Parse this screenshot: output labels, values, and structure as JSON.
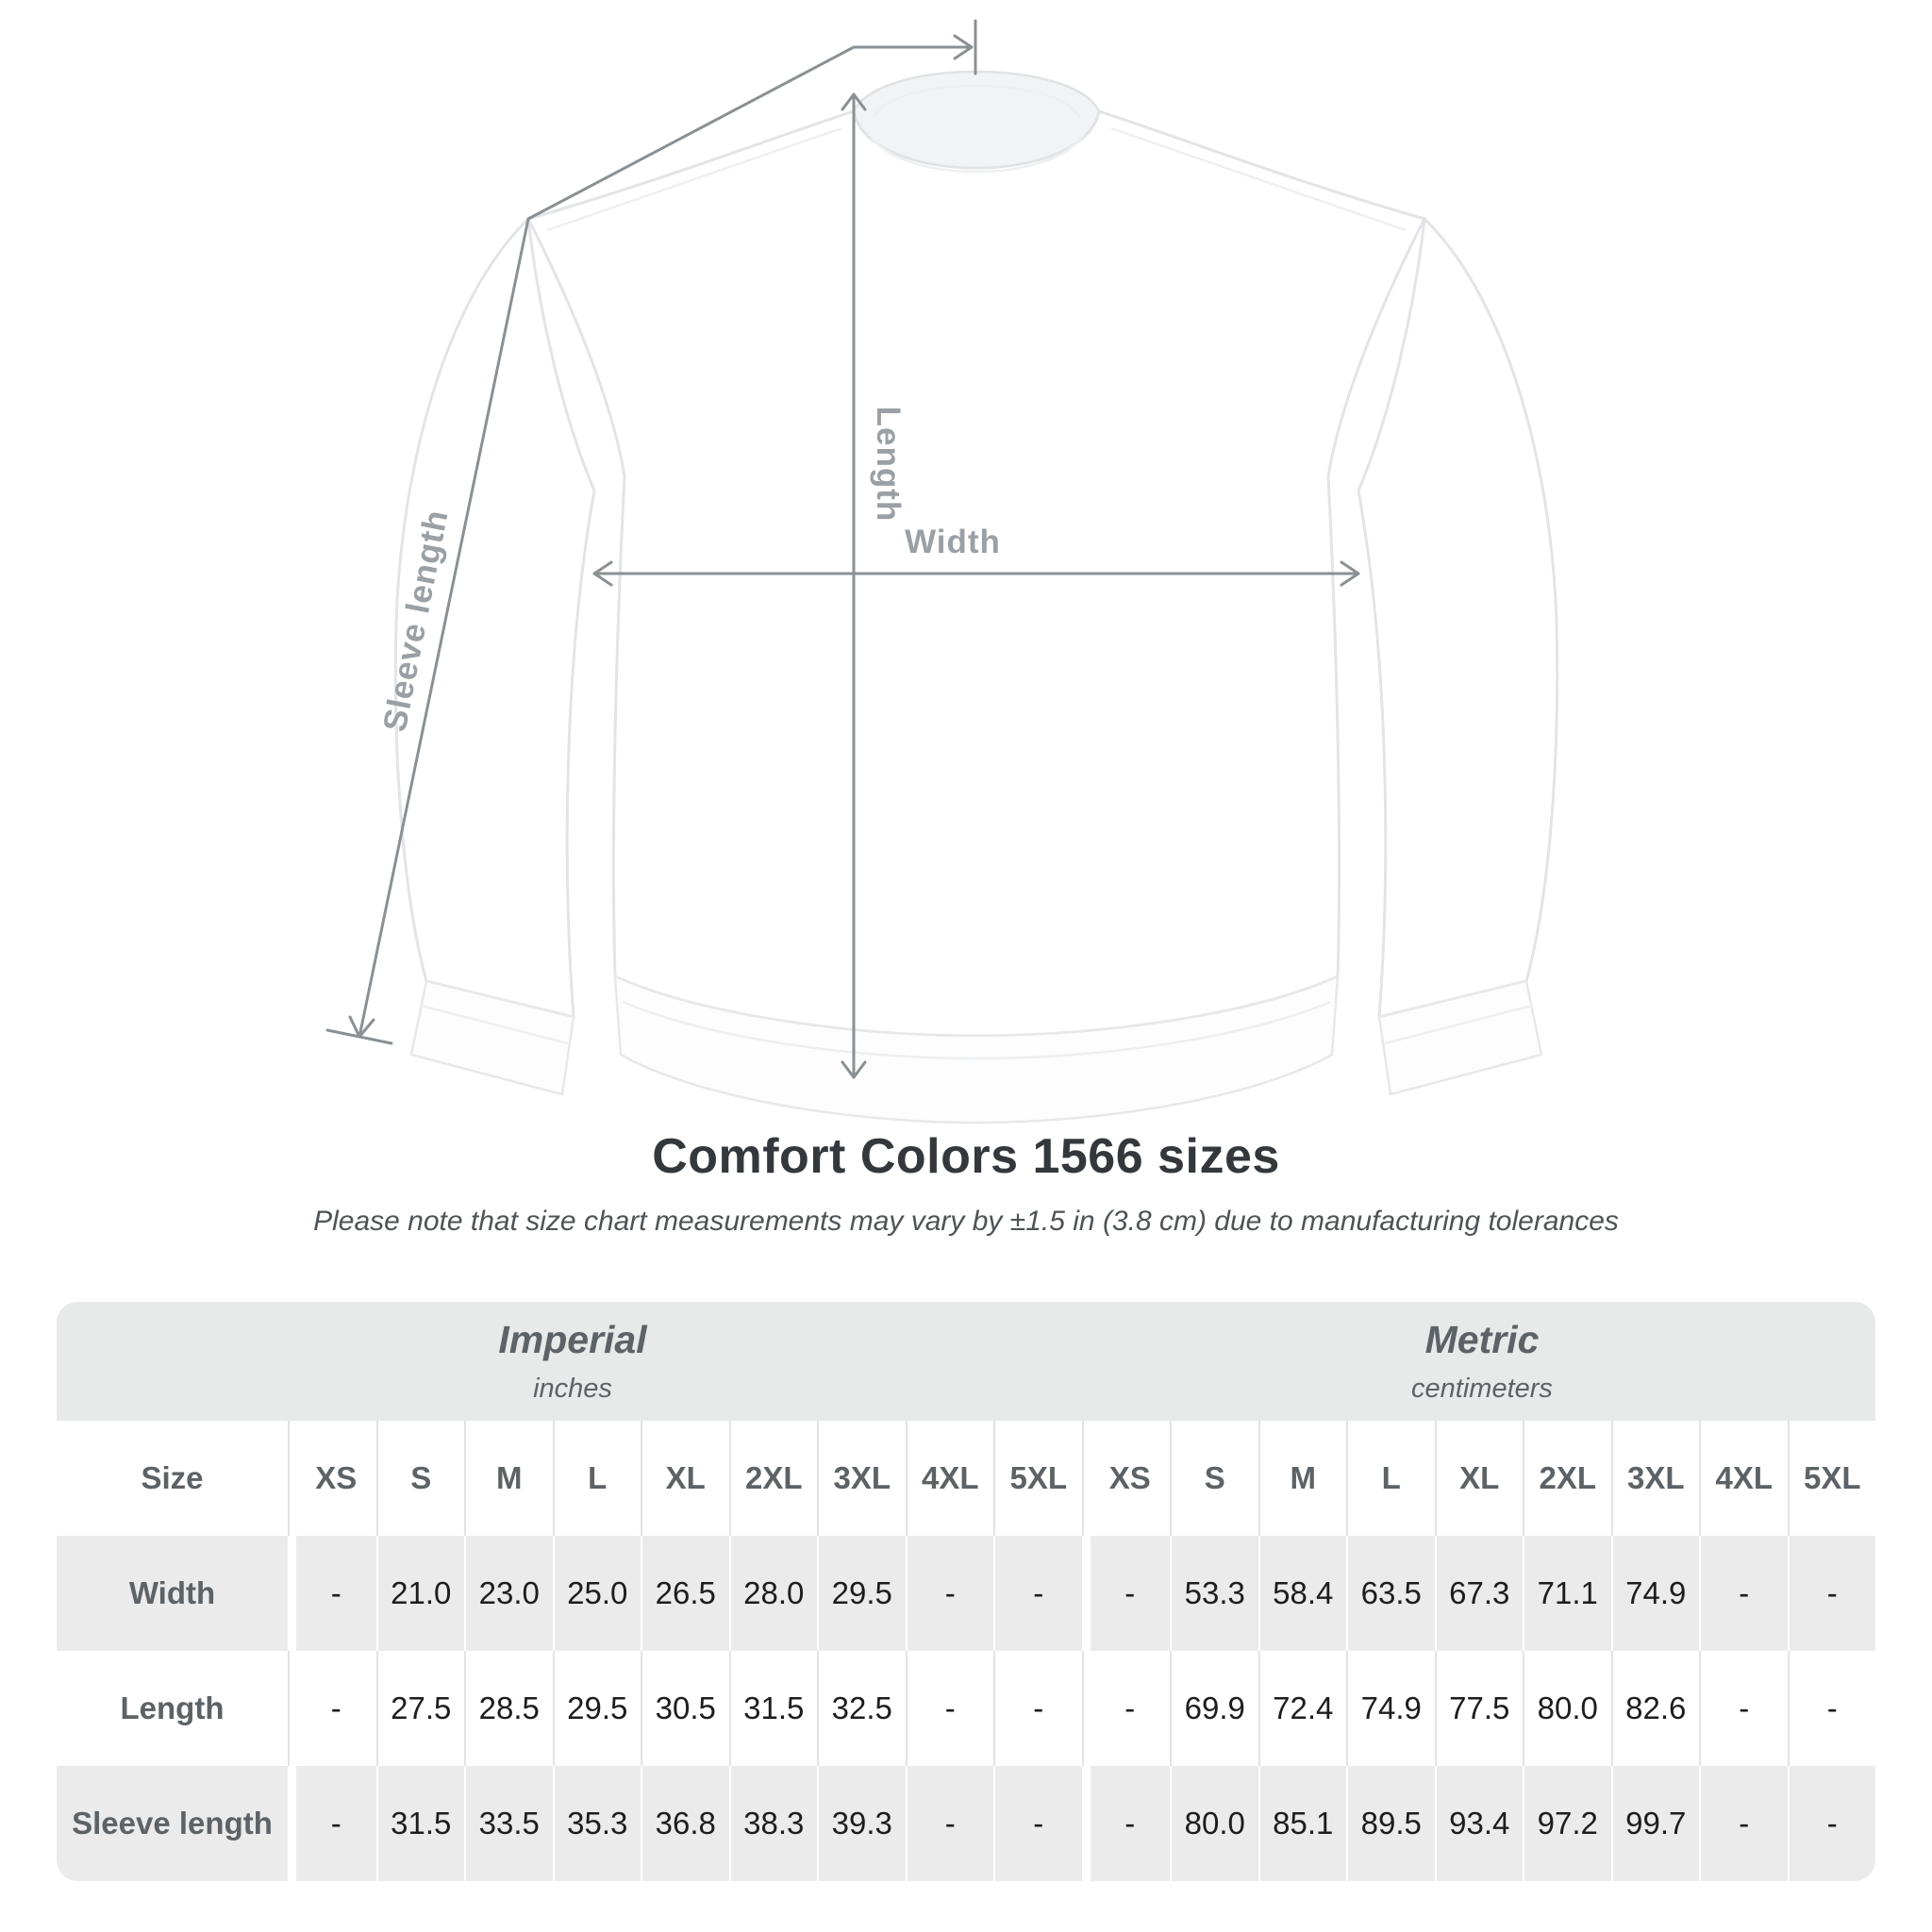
{
  "figure": {
    "length_label": "Length",
    "width_label": "Width",
    "sleeve_label": "Sleeve length",
    "line_color": "#8a9094",
    "label_color": "#9aa0a5"
  },
  "title": "Comfort Colors 1566 sizes",
  "subtitle": "Please note that size chart measurements may vary by ±1.5 in (3.8 cm) due to manufacturing tolerances",
  "table": {
    "groups": [
      {
        "label": "Imperial",
        "sublabel": "inches"
      },
      {
        "label": "Metric",
        "sublabel": "centimeters"
      }
    ],
    "size_header": "Size",
    "sizes": [
      "XS",
      "S",
      "M",
      "L",
      "XL",
      "2XL",
      "3XL",
      "4XL",
      "5XL"
    ],
    "rows": [
      {
        "label": "Width",
        "imperial": [
          "-",
          "21.0",
          "23.0",
          "25.0",
          "26.5",
          "28.0",
          "29.5",
          "-",
          "-"
        ],
        "metric": [
          "-",
          "53.3",
          "58.4",
          "63.5",
          "67.3",
          "71.1",
          "74.9",
          "-",
          "-"
        ]
      },
      {
        "label": "Length",
        "imperial": [
          "-",
          "27.5",
          "28.5",
          "29.5",
          "30.5",
          "31.5",
          "32.5",
          "-",
          "-"
        ],
        "metric": [
          "-",
          "69.9",
          "72.4",
          "74.9",
          "77.5",
          "80.0",
          "82.6",
          "-",
          "-"
        ]
      },
      {
        "label": "Sleeve length",
        "imperial": [
          "-",
          "31.5",
          "33.5",
          "35.3",
          "36.8",
          "38.3",
          "39.3",
          "-",
          "-"
        ],
        "metric": [
          "-",
          "80.0",
          "85.1",
          "89.5",
          "93.4",
          "97.2",
          "99.7",
          "-",
          "-"
        ]
      }
    ]
  },
  "colors": {
    "band_gray": "#e8e9e9",
    "stripe_gray": "#ebebeb",
    "header_text": "#5d6266",
    "value_text": "#1d1d1d",
    "title_text": "#34383c"
  }
}
